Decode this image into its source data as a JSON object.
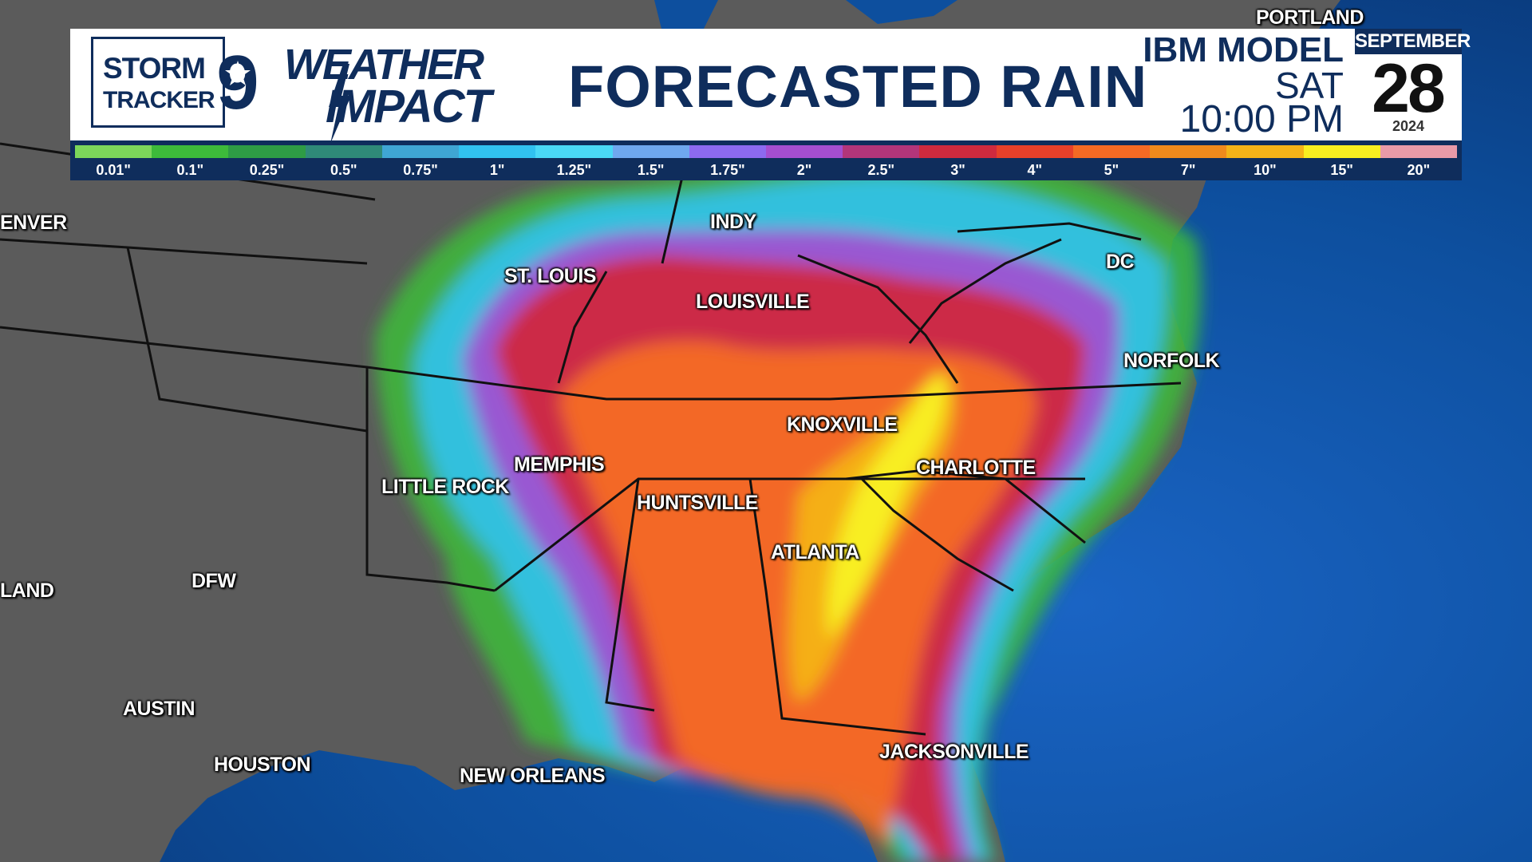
{
  "header": {
    "logo_line1": "STORM",
    "logo_line2": "TRACKER",
    "logo_number": "9",
    "brand_line1": "WEATHER",
    "brand_line2": "IMPACT",
    "title": "FORECASTED RAIN",
    "model": "IBM MODEL",
    "day": "SAT",
    "time": "10:00 PM",
    "month": "SEPTEMBER",
    "date": "28",
    "year": "2024"
  },
  "legend": [
    {
      "label": "0.01\"",
      "color": "#7cd65a"
    },
    {
      "label": "0.1\"",
      "color": "#3dbb3a"
    },
    {
      "label": "0.25\"",
      "color": "#2e9c45"
    },
    {
      "label": "0.5\"",
      "color": "#2f8a78"
    },
    {
      "label": "0.75\"",
      "color": "#3fa6d4"
    },
    {
      "label": "1\"",
      "color": "#31c2f0"
    },
    {
      "label": "1.25\"",
      "color": "#4ad8f6"
    },
    {
      "label": "1.5\"",
      "color": "#6fa8ef"
    },
    {
      "label": "1.75\"",
      "color": "#8d6af0"
    },
    {
      "label": "2\"",
      "color": "#a54ed0"
    },
    {
      "label": "2.5\"",
      "color": "#b3357a"
    },
    {
      "label": "3\"",
      "color": "#cf2a3e"
    },
    {
      "label": "4\"",
      "color": "#e8402a"
    },
    {
      "label": "5\"",
      "color": "#f46a24"
    },
    {
      "label": "7\"",
      "color": "#f08a1c"
    },
    {
      "label": "10\"",
      "color": "#f4b318"
    },
    {
      "label": "15\"",
      "color": "#f8ee20"
    },
    {
      "label": "20\"",
      "color": "#e99aa8"
    }
  ],
  "cities": [
    {
      "id": "portland",
      "name": "PORTLAND"
    },
    {
      "id": "denver",
      "name": "ENVER"
    },
    {
      "id": "indy",
      "name": "INDY"
    },
    {
      "id": "st-louis",
      "name": "ST. LOUIS"
    },
    {
      "id": "louisville",
      "name": "LOUISVILLE"
    },
    {
      "id": "dc",
      "name": "DC"
    },
    {
      "id": "norfolk",
      "name": "NORFOLK"
    },
    {
      "id": "knoxville",
      "name": "KNOXVILLE"
    },
    {
      "id": "charlotte",
      "name": "CHARLOTTE"
    },
    {
      "id": "memphis",
      "name": "MEMPHIS"
    },
    {
      "id": "little-rock",
      "name": "LITTLE ROCK"
    },
    {
      "id": "huntsville",
      "name": "HUNTSVILLE"
    },
    {
      "id": "atlanta",
      "name": "ATLANTA"
    },
    {
      "id": "oakland",
      "name": "LAND"
    },
    {
      "id": "dfw",
      "name": "DFW"
    },
    {
      "id": "austin",
      "name": "AUSTIN"
    },
    {
      "id": "houston",
      "name": "HOUSTON"
    },
    {
      "id": "new-orleans",
      "name": "NEW ORLEANS"
    },
    {
      "id": "jacksonville",
      "name": "JACKSONVILLE"
    }
  ],
  "colors": {
    "land": "#5b5b5b",
    "ocean": "#0d4f9e",
    "brand_navy": "#0f2d5c"
  }
}
